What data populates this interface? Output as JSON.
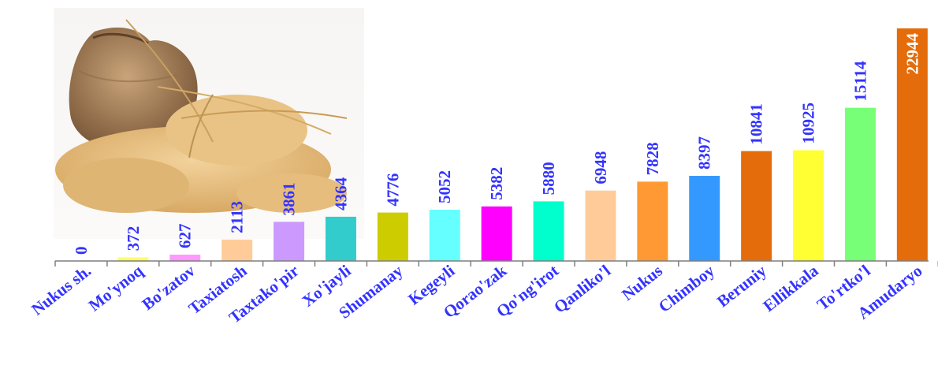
{
  "chart_data": {
    "type": "bar",
    "categories": [
      "Nukus sh.",
      "Mo'ynoq",
      "Bo'zatov",
      "Taxiatosh",
      "Taxtako'pir",
      "Xo'jayli",
      "Shumanay",
      "Kegeyli",
      "Qorao'zak",
      "Qo'ng'irot",
      "Qanliko'l",
      "Nukus",
      "Chimboy",
      "Beruniy",
      "Ellikkala",
      "To'rtko'l",
      "Amudaryo"
    ],
    "values": [
      0,
      372,
      627,
      2113,
      3861,
      4364,
      4776,
      5052,
      5382,
      5880,
      6948,
      7828,
      8397,
      10841,
      10925,
      15114,
      22944
    ],
    "value_labels": [
      "0",
      "372",
      "627",
      "2113",
      "3861",
      "4364",
      "4776",
      "5052",
      "5382",
      "5880",
      "6948",
      "7828",
      "8397",
      "10841",
      "10925",
      "15114",
      "22944"
    ],
    "colors": [
      "#c8c8c8",
      "#ffff66",
      "#ff99ff",
      "#ffcc99",
      "#cc99ff",
      "#33cccc",
      "#cccc00",
      "#66ffff",
      "#ff00ff",
      "#00ffcc",
      "#ffcc99",
      "#ff9933",
      "#3399ff",
      "#e46c0a",
      "#ffff33",
      "#77ff77",
      "#e46c0a"
    ],
    "label_color": "#3333ff",
    "axis_color": "#7f7f7f",
    "ylim": [
      0,
      22944
    ],
    "grid": false,
    "decoration": "wheat-sack-illustration"
  }
}
